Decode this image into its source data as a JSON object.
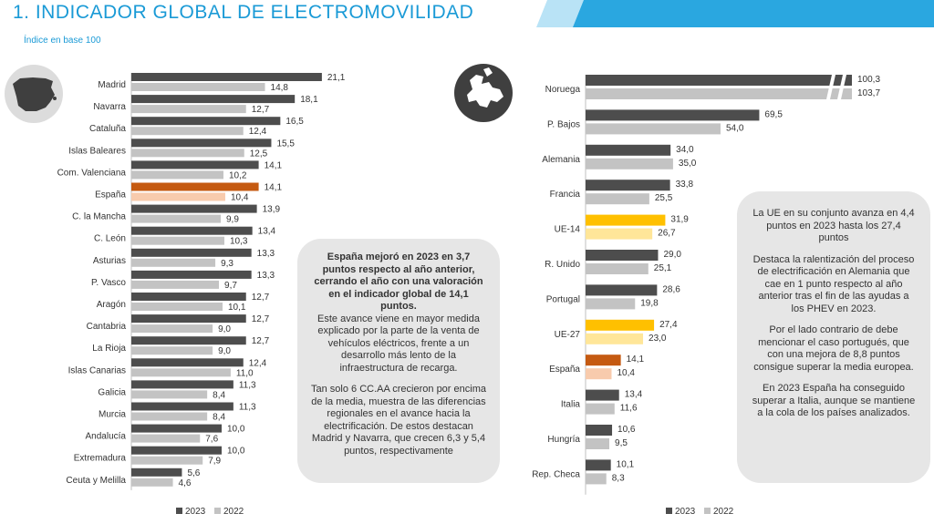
{
  "header": {
    "title": "1. INDICADOR GLOBAL DE ELECTROMOVILIDAD",
    "subtitle": "Índice en base 100"
  },
  "colors": {
    "y2023": "#4d4d4d",
    "y2022": "#c3c3c3",
    "spain2023": "#c55a11",
    "spain2022": "#f8cbad",
    "eu2023": "#ffc000",
    "eu2022": "#ffe699",
    "accent": "#1a9ad6",
    "box": "#e6e6e6"
  },
  "chart_data": [
    {
      "type": "bar",
      "orientation": "horizontal",
      "name": "Comunidades Autónomas",
      "categories": [
        "Madrid",
        "Navarra",
        "Cataluña",
        "Islas Baleares",
        "Com. Valenciana",
        "España",
        "C. la Mancha",
        "C. León",
        "Asturias",
        "P. Vasco",
        "Aragón",
        "Cantabria",
        "La Rioja",
        "Islas Canarias",
        "Galicia",
        "Murcia",
        "Andalucía",
        "Extremadura",
        "Ceuta y Melilla"
      ],
      "highlight": {
        "España": "spain"
      },
      "series": [
        {
          "name": "2023",
          "values": [
            21.1,
            18.1,
            16.5,
            15.5,
            14.1,
            14.1,
            13.9,
            13.4,
            13.3,
            13.3,
            12.7,
            12.7,
            12.7,
            12.4,
            11.3,
            11.3,
            10.0,
            10.0,
            5.6
          ]
        },
        {
          "name": "2022",
          "values": [
            14.8,
            12.7,
            12.4,
            12.5,
            10.2,
            10.4,
            9.9,
            10.3,
            9.3,
            9.7,
            10.1,
            9.0,
            9.0,
            11.0,
            8.4,
            8.4,
            7.6,
            7.9,
            4.6
          ]
        }
      ],
      "labels2023": [
        "21,1",
        "18,1",
        "16,5",
        "15,5",
        "14,1",
        "14,1",
        "13,9",
        "13,4",
        "13,3",
        "13,3",
        "12,7",
        "12,7",
        "12,7",
        "12,4",
        "11,3",
        "11,3",
        "10,0",
        "10,0",
        "5,6"
      ],
      "labels2022": [
        "14,8",
        "12,7",
        "12,4",
        "12,5",
        "10,2",
        "10,4",
        "9,9",
        "10,3",
        "9,3",
        "9,7",
        "10,1",
        "9,0",
        "9,0",
        "11,0",
        "8,4",
        "8,4",
        "7,6",
        "7,9",
        "4,6"
      ],
      "legend": [
        "2023",
        "2022"
      ],
      "xlim": [
        0,
        23
      ]
    },
    {
      "type": "bar",
      "orientation": "horizontal",
      "name": "Países europeos",
      "categories": [
        "Noruega",
        "P. Bajos",
        "Alemania",
        "Francia",
        "UE-14",
        "R. Unido",
        "Portugal",
        "UE-27",
        "España",
        "Italia",
        "Hungría",
        "Rep. Checa"
      ],
      "highlight": {
        "España": "spain",
        "UE-14": "eu",
        "UE-27": "eu"
      },
      "broken_axis": [
        "Noruega"
      ],
      "series": [
        {
          "name": "2023",
          "values": [
            100.3,
            69.5,
            34.0,
            33.8,
            31.9,
            29.0,
            28.6,
            27.4,
            14.1,
            13.4,
            10.6,
            10.1
          ]
        },
        {
          "name": "2022",
          "values": [
            103.7,
            54.0,
            35.0,
            25.5,
            26.7,
            25.1,
            19.8,
            23.0,
            10.4,
            11.6,
            9.5,
            8.3
          ]
        }
      ],
      "labels2023": [
        "100,3",
        "69,5",
        "34,0",
        "33,8",
        "31,9",
        "29,0",
        "28,6",
        "27,4",
        "14,1",
        "13,4",
        "10,6",
        "10,1"
      ],
      "labels2022": [
        "103,7",
        "54,0",
        "35,0",
        "25,5",
        "26,7",
        "25,1",
        "19,8",
        "23,0",
        "10,4",
        "11,6",
        "9,5",
        "8,3"
      ],
      "legend": [
        "2023",
        "2022"
      ],
      "xlim": [
        0,
        115
      ]
    }
  ],
  "left_box": {
    "bold": "España mejoró en 2023 en 3,7 puntos respecto al año anterior, cerrando el año con una valoración en el indicador global de 14,1 puntos.",
    "p1": "Este avance viene en mayor medida explicado por la parte de la venta de vehículos eléctricos, frente a un desarrollo más lento de la infraestructura de recarga.",
    "p2": "Tan solo 6 CC.AA crecieron por encima de la media, muestra de las diferencias regionales en el avance hacia la electrificación. De estos destacan Madrid y Navarra, que crecen 6,3 y 5,4 puntos, respectivamente"
  },
  "right_box": {
    "p1": "La UE en su conjunto avanza en 4,4 puntos en 2023 hasta los 27,4 puntos",
    "p2": "Destaca la ralentización del proceso de electrificación en Alemania que cae en 1 punto respecto al año anterior tras el fin de las ayudas a los PHEV en 2023.",
    "p3": "Por el lado contrario de debe mencionar el caso portugués, que con una mejora de 8,8 puntos consigue superar la media europea.",
    "p4": "En 2023 España ha conseguido superar a Italia, aunque se mantiene a la cola de los países analizados."
  },
  "icons": {
    "left": "spain-map-icon",
    "right": "europe-map-icon"
  }
}
